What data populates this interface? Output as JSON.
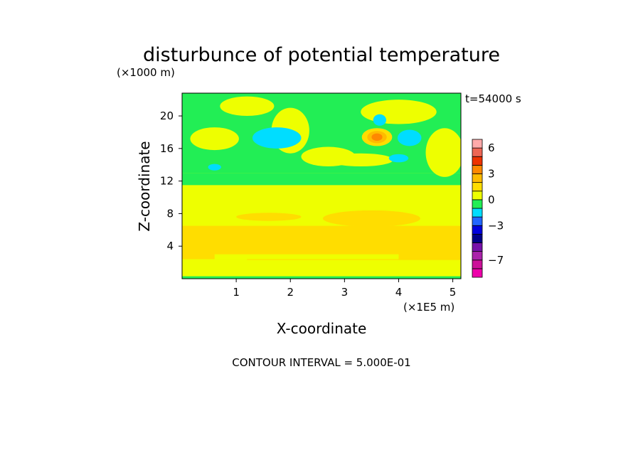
{
  "chart_data": {
    "type": "heatmap",
    "title": "disturbunce of potential temperature",
    "y_multiplier": "(×1000 m)",
    "x_multiplier": "(×1E5 m)",
    "time_label": "t=54000 s",
    "xlabel": "X-coordinate",
    "ylabel": "Z-coordinate",
    "note": "CONTOUR INTERVAL = 5.000E-01",
    "xlim": [
      0,
      5.15
    ],
    "ylim": [
      0,
      22.8
    ],
    "x_ticks": [
      "1",
      "2",
      "3",
      "4",
      "5"
    ],
    "y_ticks": [
      "4",
      "8",
      "12",
      "16",
      "20"
    ],
    "colorbar": {
      "levels": [
        -9,
        -8,
        -7,
        -6,
        -5,
        -4,
        -3,
        -2,
        -1,
        0,
        1,
        2,
        3,
        4,
        5,
        6,
        7
      ],
      "colors": [
        "#ee00aa",
        "#cc1199",
        "#aa22aa",
        "#7711aa",
        "#000088",
        "#0000dd",
        "#2266ff",
        "#00ddff",
        "#22ee55",
        "#eeff00",
        "#ffdd00",
        "#ffbb00",
        "#ff8800",
        "#ee3300",
        "#ee6655",
        "#ffaaaa"
      ],
      "tick_labels": [
        "6",
        "3",
        "0",
        "−3",
        "−7"
      ],
      "tick_values": [
        6,
        3,
        0,
        -3,
        -7
      ]
    },
    "field": {
      "background": "#eeff00",
      "regions": [
        {
          "level": 1,
          "type": "band",
          "x": [
            0,
            5.15
          ],
          "y": [
            2.3,
            6.5
          ]
        },
        {
          "level": 1,
          "type": "blob",
          "cx": 3.5,
          "cy": 7.4,
          "rx": 0.9,
          "ry": 1.0
        },
        {
          "level": 1,
          "type": "blob",
          "cx": 1.6,
          "cy": 7.6,
          "rx": 0.6,
          "ry": 0.5
        },
        {
          "level": 0,
          "type": "band",
          "x": [
            0.6,
            4.0
          ],
          "y": [
            2.4,
            3.0
          ]
        },
        {
          "level": 0,
          "type": "band",
          "x": [
            0.0,
            1.2
          ],
          "y": [
            1.8,
            2.4
          ]
        },
        {
          "level": -1,
          "type": "band",
          "x": [
            0,
            5.15
          ],
          "y": [
            0,
            0.3
          ]
        },
        {
          "level": -1,
          "type": "band",
          "x": [
            0,
            5.15
          ],
          "y": [
            13.0,
            22.8
          ]
        },
        {
          "level": -1,
          "type": "band",
          "x": [
            0,
            5.15
          ],
          "y": [
            11.5,
            13.0
          ]
        },
        {
          "level": 0,
          "type": "blob",
          "cx": 2.0,
          "cy": 18.2,
          "rx": 0.35,
          "ry": 2.8
        },
        {
          "level": 0,
          "type": "blob",
          "cx": 0.6,
          "cy": 17.2,
          "rx": 0.45,
          "ry": 1.4
        },
        {
          "level": 0,
          "type": "blob",
          "cx": 2.7,
          "cy": 15.0,
          "rx": 0.5,
          "ry": 1.2
        },
        {
          "level": 0,
          "type": "blob",
          "cx": 4.0,
          "cy": 20.5,
          "rx": 0.7,
          "ry": 1.5
        },
        {
          "level": 0,
          "type": "blob",
          "cx": 4.85,
          "cy": 15.5,
          "rx": 0.35,
          "ry": 3.0
        },
        {
          "level": 0,
          "type": "blob",
          "cx": 3.3,
          "cy": 14.6,
          "rx": 0.6,
          "ry": 0.8
        },
        {
          "level": 0,
          "type": "blob",
          "cx": 1.2,
          "cy": 21.2,
          "rx": 0.5,
          "ry": 1.2
        },
        {
          "level": -2,
          "type": "blob",
          "cx": 1.75,
          "cy": 17.3,
          "rx": 0.45,
          "ry": 1.3
        },
        {
          "level": -2,
          "type": "blob",
          "cx": 0.6,
          "cy": 13.7,
          "rx": 0.12,
          "ry": 0.4
        },
        {
          "level": -2,
          "type": "blob",
          "cx": 3.65,
          "cy": 19.5,
          "rx": 0.12,
          "ry": 0.7
        },
        {
          "level": -2,
          "type": "blob",
          "cx": 4.2,
          "cy": 17.3,
          "rx": 0.22,
          "ry": 1.0
        },
        {
          "level": -2,
          "type": "blob",
          "cx": 4.0,
          "cy": 14.8,
          "rx": 0.18,
          "ry": 0.5
        },
        {
          "level": 1,
          "type": "blob",
          "cx": 3.6,
          "cy": 17.4,
          "rx": 0.28,
          "ry": 1.1
        },
        {
          "level": 2,
          "type": "blob",
          "cx": 3.6,
          "cy": 17.4,
          "rx": 0.18,
          "ry": 0.75
        },
        {
          "level": 3,
          "type": "blob",
          "cx": 3.6,
          "cy": 17.4,
          "rx": 0.1,
          "ry": 0.45
        }
      ]
    }
  }
}
